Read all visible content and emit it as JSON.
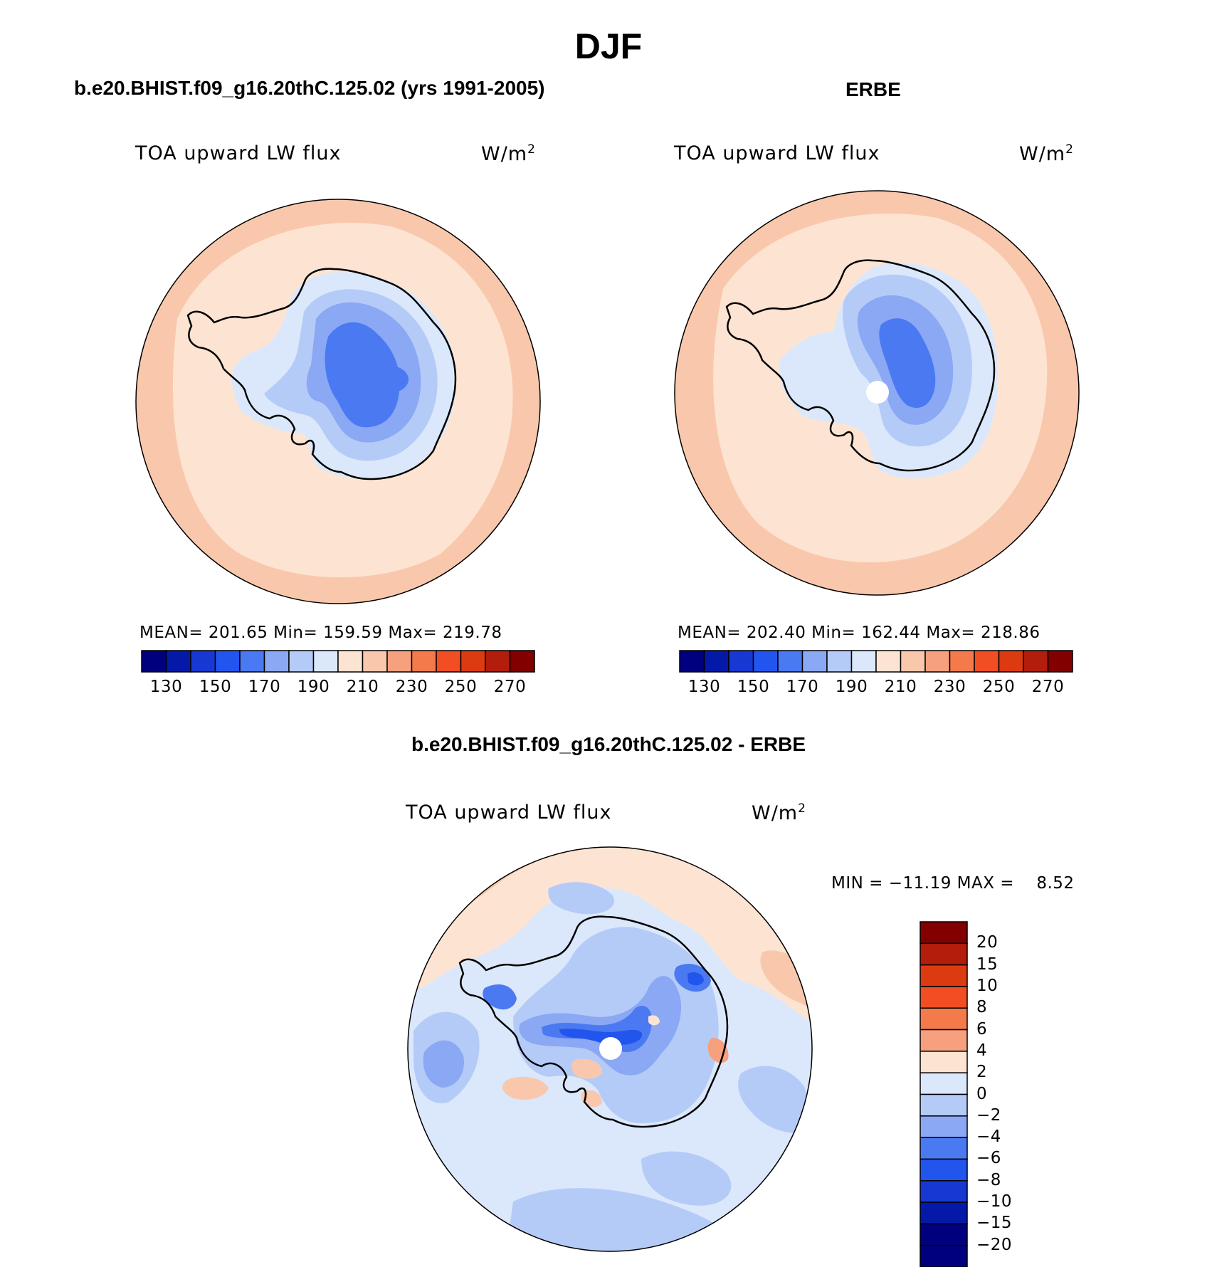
{
  "title": "DJF",
  "panels": {
    "model": {
      "heading": "b.e20.BHIST.f09_g16.20thC.125.02 (yrs 1991-2005)",
      "variable": "TOA upward LW flux",
      "units": "W/m",
      "units_sup": "2",
      "stats": "MEAN= 201.65   Min= 159.59   Max= 219.78"
    },
    "obs": {
      "heading": "ERBE",
      "variable": "TOA upward LW flux",
      "units": "W/m",
      "units_sup": "2",
      "stats": "MEAN= 202.40   Min= 162.44   Max= 218.86"
    },
    "diff": {
      "heading": "b.e20.BHIST.f09_g16.20thC.125.02 - ERBE",
      "variable": "TOA upward LW flux",
      "units": "W/m",
      "units_sup": "2",
      "minmax": "MIN = −11.19 MAX =    8.52"
    }
  },
  "colorbar_abs": {
    "colors": [
      "#00007f",
      "#0519a8",
      "#1838d4",
      "#2255ee",
      "#4a79f2",
      "#8aa8f4",
      "#b5cbf7",
      "#dbe8fb",
      "#fde4d2",
      "#f9c8ac",
      "#f6a07e",
      "#f47a4c",
      "#f14e24",
      "#dc3a10",
      "#b31d0c",
      "#820000"
    ],
    "tick_labels": [
      "130",
      "150",
      "170",
      "190",
      "210",
      "230",
      "250",
      "270"
    ]
  },
  "colorbar_diff": {
    "colors": [
      "#820000",
      "#b31d0c",
      "#dc3a10",
      "#f14e24",
      "#f47a4c",
      "#f6a07e",
      "#fde4d2",
      "#dbe8fb",
      "#b5cbf7",
      "#8aa8f4",
      "#4a79f2",
      "#2255ee",
      "#1838d4",
      "#0519a8",
      "#00007f"
    ],
    "tick_labels": [
      "20",
      "15",
      "10",
      "8",
      "6",
      "4",
      "2",
      "0",
      "−2",
      "−4",
      "−6",
      "−8",
      "−10",
      "−15",
      "−20"
    ]
  }
}
